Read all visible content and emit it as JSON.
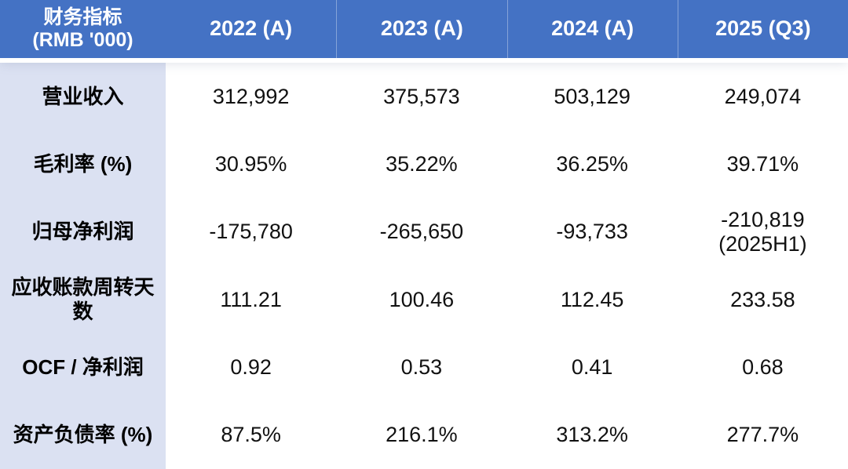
{
  "table": {
    "header": {
      "metric_label": "财务指标\n(RMB '000)",
      "years": [
        "2022 (A)",
        "2023 (A)",
        "2024 (A)",
        "2025 (Q3)"
      ]
    },
    "rows": [
      {
        "label": "营业收入",
        "values": [
          "312,992",
          "375,573",
          "503,129",
          "249,074"
        ]
      },
      {
        "label": "毛利率 (%)",
        "values": [
          "30.95%",
          "35.22%",
          "36.25%",
          "39.71%"
        ]
      },
      {
        "label": "归母净利润",
        "values": [
          "-175,780",
          "-265,650",
          "-93,733",
          "-210,819\n(2025H1)"
        ]
      },
      {
        "label": "应收账款周转天数",
        "values": [
          "111.21",
          "100.46",
          "112.45",
          "233.58"
        ]
      },
      {
        "label": "OCF / 净利润",
        "values": [
          "0.92",
          "0.53",
          "0.41",
          "0.68"
        ]
      },
      {
        "label": "资产负债率 (%)",
        "values": [
          "87.5%",
          "216.1%",
          "313.2%",
          "277.7%"
        ]
      }
    ],
    "colors": {
      "header_bg": "#4472C4",
      "header_text": "#FFFFFF",
      "header_divider": "#7A9AD8",
      "label_column_bg": "#DBE1F2",
      "body_bg": "#FFFFFF",
      "text": "#111111"
    }
  },
  "chart_data": {
    "type": "table",
    "title": "财务指标 (RMB '000)",
    "columns": [
      "财务指标 (RMB '000)",
      "2022 (A)",
      "2023 (A)",
      "2024 (A)",
      "2025 (Q3)"
    ],
    "rows": [
      [
        "营业收入",
        "312,992",
        "375,573",
        "503,129",
        "249,074"
      ],
      [
        "毛利率 (%)",
        "30.95%",
        "35.22%",
        "36.25%",
        "39.71%"
      ],
      [
        "归母净利润",
        "-175,780",
        "-265,650",
        "-93,733",
        "-210,819 (2025H1)"
      ],
      [
        "应收账款周转天数",
        "111.21",
        "100.46",
        "112.45",
        "233.58"
      ],
      [
        "OCF / 净利润",
        "0.92",
        "0.53",
        "0.41",
        "0.68"
      ],
      [
        "资产负债率 (%)",
        "87.5%",
        "216.1%",
        "313.2%",
        "277.7%"
      ]
    ]
  }
}
